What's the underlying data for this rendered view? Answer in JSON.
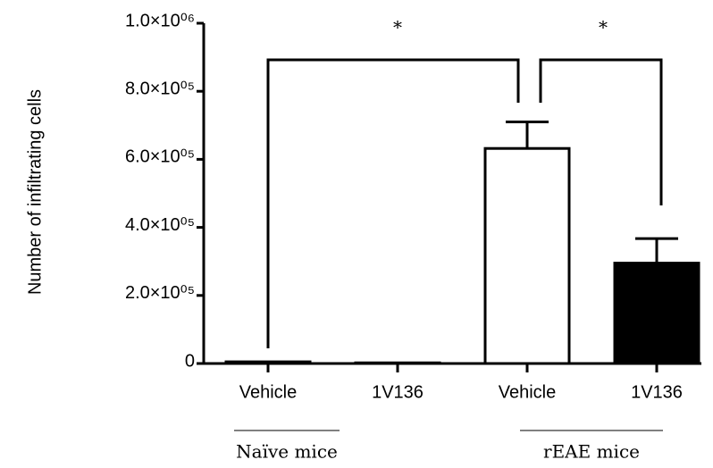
{
  "chart_data": {
    "type": "bar",
    "ylabel": "Number of infiltrating cells",
    "categories": [
      "Vehicle",
      "1V136",
      "Vehicle",
      "1V136"
    ],
    "values": [
      5000,
      2000,
      632000,
      295000
    ],
    "errors": [
      null,
      null,
      78000,
      72000
    ],
    "colors": [
      "#000000",
      "#000000",
      "#ffffff",
      "#000000"
    ],
    "groups": [
      "Naïve mice",
      "rEAE mice"
    ],
    "annotations": [
      "*",
      "*"
    ],
    "ylim": [
      0,
      1000000
    ],
    "yticks": [
      0,
      {
        "value": 200000,
        "label": "2.0×10⁰⁵"
      },
      {
        "value": 400000,
        "label": "4.0×10⁰⁵"
      },
      {
        "value": 600000,
        "label": "6.0×10⁰⁵"
      },
      {
        "value": 800000,
        "label": "8.0×10⁰⁵"
      },
      {
        "value": 1000000,
        "label": "1.0×10⁰⁶"
      }
    ]
  }
}
